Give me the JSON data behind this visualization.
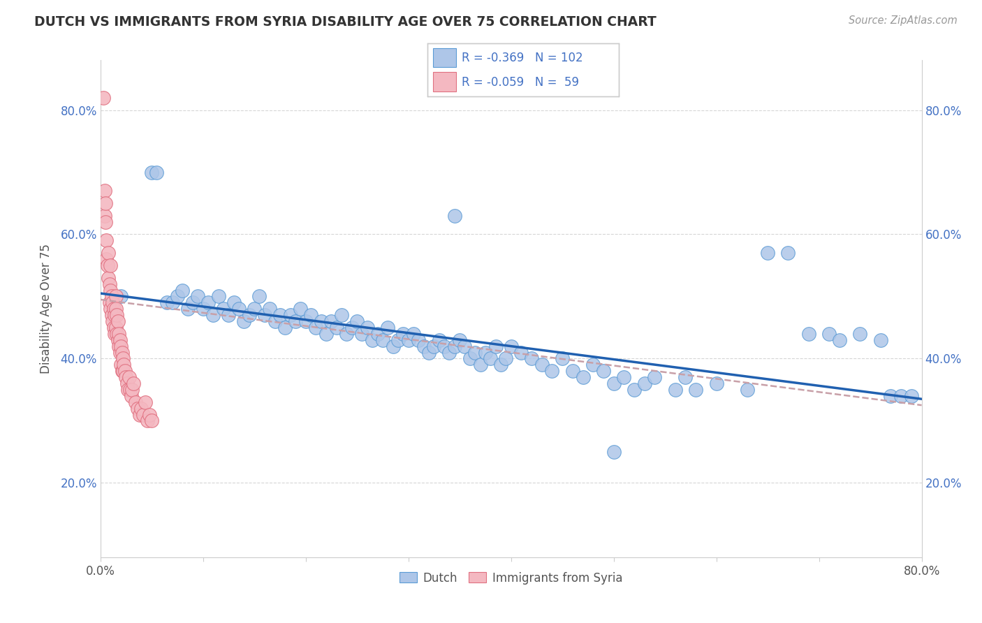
{
  "title": "DUTCH VS IMMIGRANTS FROM SYRIA DISABILITY AGE OVER 75 CORRELATION CHART",
  "ylabel": "Disability Age Over 75",
  "source": "Source: ZipAtlas.com",
  "xlim": [
    0.0,
    0.8
  ],
  "ylim": [
    0.08,
    0.88
  ],
  "yticks": [
    0.2,
    0.4,
    0.6,
    0.8
  ],
  "ytick_labels": [
    "20.0%",
    "40.0%",
    "60.0%",
    "80.0%"
  ],
  "R_dutch": -0.369,
  "N_dutch": 102,
  "R_syria": -0.059,
  "N_syria": 59,
  "dutch_color": "#aec6e8",
  "dutch_edge_color": "#5b9bd5",
  "syria_color": "#f4b8c1",
  "syria_edge_color": "#e07080",
  "trend_dutch_color": "#2060b0",
  "trend_syria_color": "#c8a0a8",
  "background_color": "#ffffff",
  "grid_color": "#cccccc",
  "dutch_x": [
    0.02,
    0.05,
    0.055,
    0.065,
    0.07,
    0.075,
    0.08,
    0.085,
    0.09,
    0.095,
    0.1,
    0.105,
    0.11,
    0.115,
    0.12,
    0.125,
    0.13,
    0.135,
    0.14,
    0.145,
    0.15,
    0.155,
    0.16,
    0.165,
    0.17,
    0.175,
    0.18,
    0.185,
    0.19,
    0.195,
    0.2,
    0.205,
    0.21,
    0.215,
    0.22,
    0.225,
    0.23,
    0.235,
    0.24,
    0.245,
    0.25,
    0.255,
    0.26,
    0.265,
    0.27,
    0.275,
    0.28,
    0.285,
    0.29,
    0.295,
    0.3,
    0.305,
    0.31,
    0.315,
    0.32,
    0.325,
    0.33,
    0.335,
    0.34,
    0.345,
    0.35,
    0.355,
    0.36,
    0.365,
    0.37,
    0.375,
    0.38,
    0.385,
    0.39,
    0.395,
    0.4,
    0.41,
    0.42,
    0.43,
    0.44,
    0.45,
    0.46,
    0.47,
    0.48,
    0.49,
    0.5,
    0.51,
    0.52,
    0.53,
    0.54,
    0.56,
    0.57,
    0.58,
    0.6,
    0.63,
    0.65,
    0.67,
    0.69,
    0.71,
    0.72,
    0.74,
    0.76,
    0.77,
    0.78,
    0.79,
    0.345,
    0.5
  ],
  "dutch_y": [
    0.5,
    0.7,
    0.7,
    0.49,
    0.49,
    0.5,
    0.51,
    0.48,
    0.49,
    0.5,
    0.48,
    0.49,
    0.47,
    0.5,
    0.48,
    0.47,
    0.49,
    0.48,
    0.46,
    0.47,
    0.48,
    0.5,
    0.47,
    0.48,
    0.46,
    0.47,
    0.45,
    0.47,
    0.46,
    0.48,
    0.46,
    0.47,
    0.45,
    0.46,
    0.44,
    0.46,
    0.45,
    0.47,
    0.44,
    0.45,
    0.46,
    0.44,
    0.45,
    0.43,
    0.44,
    0.43,
    0.45,
    0.42,
    0.43,
    0.44,
    0.43,
    0.44,
    0.43,
    0.42,
    0.41,
    0.42,
    0.43,
    0.42,
    0.41,
    0.42,
    0.43,
    0.42,
    0.4,
    0.41,
    0.39,
    0.41,
    0.4,
    0.42,
    0.39,
    0.4,
    0.42,
    0.41,
    0.4,
    0.39,
    0.38,
    0.4,
    0.38,
    0.37,
    0.39,
    0.38,
    0.36,
    0.37,
    0.35,
    0.36,
    0.37,
    0.35,
    0.37,
    0.35,
    0.36,
    0.35,
    0.57,
    0.57,
    0.44,
    0.44,
    0.43,
    0.44,
    0.43,
    0.34,
    0.34,
    0.34,
    0.63,
    0.25
  ],
  "syria_x": [
    0.003,
    0.004,
    0.004,
    0.005,
    0.005,
    0.006,
    0.006,
    0.007,
    0.008,
    0.008,
    0.009,
    0.009,
    0.01,
    0.01,
    0.01,
    0.011,
    0.011,
    0.012,
    0.012,
    0.013,
    0.013,
    0.014,
    0.014,
    0.015,
    0.015,
    0.015,
    0.016,
    0.016,
    0.017,
    0.017,
    0.018,
    0.018,
    0.019,
    0.019,
    0.02,
    0.02,
    0.021,
    0.021,
    0.022,
    0.022,
    0.023,
    0.024,
    0.025,
    0.026,
    0.027,
    0.028,
    0.029,
    0.03,
    0.031,
    0.032,
    0.034,
    0.036,
    0.038,
    0.04,
    0.042,
    0.044,
    0.046,
    0.048,
    0.05
  ],
  "syria_y": [
    0.82,
    0.67,
    0.63,
    0.65,
    0.62,
    0.59,
    0.56,
    0.55,
    0.57,
    0.53,
    0.52,
    0.49,
    0.55,
    0.51,
    0.48,
    0.5,
    0.47,
    0.49,
    0.46,
    0.48,
    0.45,
    0.47,
    0.44,
    0.5,
    0.48,
    0.45,
    0.47,
    0.44,
    0.46,
    0.43,
    0.44,
    0.42,
    0.43,
    0.41,
    0.42,
    0.39,
    0.41,
    0.38,
    0.4,
    0.38,
    0.39,
    0.38,
    0.37,
    0.36,
    0.35,
    0.37,
    0.35,
    0.34,
    0.35,
    0.36,
    0.33,
    0.32,
    0.31,
    0.32,
    0.31,
    0.33,
    0.3,
    0.31,
    0.3
  ],
  "trend_dutch_x0": 0.0,
  "trend_dutch_y0": 0.505,
  "trend_dutch_x1": 0.8,
  "trend_dutch_y1": 0.335,
  "trend_syria_x0": 0.0,
  "trend_syria_y0": 0.495,
  "trend_syria_x1": 0.8,
  "trend_syria_y1": 0.325
}
